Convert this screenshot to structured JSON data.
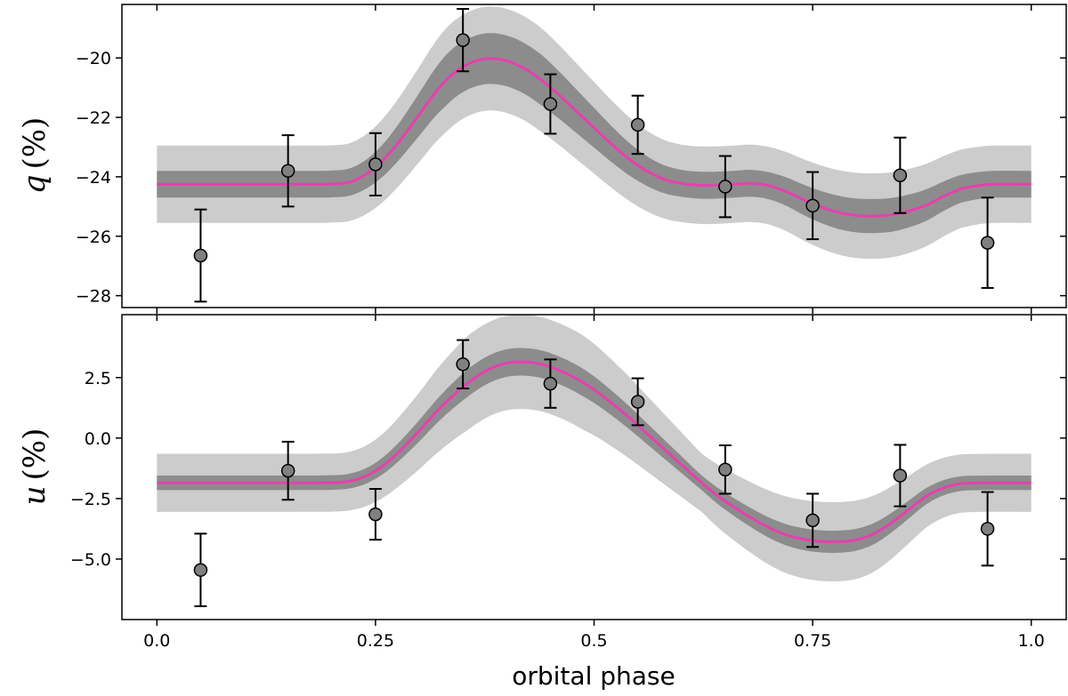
{
  "colors": {
    "band_outer": "#cccccc",
    "band_inner": "#8c8c8c",
    "model_line": "#e83fae",
    "marker_fill": "#808080",
    "marker_edge": "#000000",
    "axis": "#000000"
  },
  "chart_data": [
    {
      "type": "scatter",
      "panel": "top",
      "ylabel_var": "q",
      "ylabel_unit": "(%)",
      "xlabel": "",
      "xlim": [
        -0.04,
        1.04
      ],
      "ylim": [
        -28.4,
        -18.2
      ],
      "yticks": [
        -28,
        -26,
        -24,
        -22,
        -20
      ],
      "ytick_labels": [
        "−28",
        "−26",
        "−24",
        "−22",
        "−20"
      ],
      "xticks": [
        0.0,
        0.25,
        0.5,
        0.75,
        1.0
      ],
      "points": {
        "x": [
          0.05,
          0.15,
          0.25,
          0.35,
          0.45,
          0.55,
          0.65,
          0.75,
          0.85,
          0.95
        ],
        "y": [
          -26.65,
          -23.8,
          -23.58,
          -19.4,
          -21.55,
          -22.25,
          -24.33,
          -24.97,
          -23.95,
          -26.22
        ],
        "yerr": [
          1.55,
          1.2,
          1.05,
          1.05,
          1.0,
          0.98,
          1.03,
          1.13,
          1.27,
          1.52
        ]
      },
      "model": {
        "x": [
          0.0,
          0.05,
          0.1,
          0.15,
          0.18,
          0.2,
          0.22,
          0.24,
          0.26,
          0.28,
          0.3,
          0.32,
          0.34,
          0.36,
          0.38,
          0.4,
          0.42,
          0.44,
          0.46,
          0.48,
          0.5,
          0.52,
          0.54,
          0.56,
          0.58,
          0.6,
          0.62,
          0.64,
          0.66,
          0.68,
          0.7,
          0.72,
          0.74,
          0.76,
          0.78,
          0.8,
          0.82,
          0.84,
          0.86,
          0.88,
          0.9,
          0.92,
          0.95,
          1.0
        ],
        "y": [
          -24.25,
          -24.25,
          -24.25,
          -24.25,
          -24.25,
          -24.24,
          -24.18,
          -23.9,
          -23.4,
          -22.7,
          -21.9,
          -21.1,
          -20.5,
          -20.15,
          -20.02,
          -20.1,
          -20.35,
          -20.75,
          -21.25,
          -21.8,
          -22.35,
          -22.9,
          -23.4,
          -23.8,
          -24.08,
          -24.22,
          -24.28,
          -24.28,
          -24.25,
          -24.22,
          -24.3,
          -24.5,
          -24.78,
          -25.02,
          -25.2,
          -25.3,
          -25.32,
          -25.28,
          -25.15,
          -24.95,
          -24.65,
          -24.4,
          -24.26,
          -24.25
        ]
      },
      "band_inner_halfwidth": 0.45,
      "band_outer_halfwidth": 1.3,
      "band_outer_halfwidth_peak": 1.75
    },
    {
      "type": "scatter",
      "panel": "bottom",
      "ylabel_var": "u",
      "ylabel_unit": "(%)",
      "xlabel": "orbital phase",
      "xlim": [
        -0.04,
        1.04
      ],
      "ylim": [
        -7.5,
        5.1
      ],
      "yticks": [
        -5.0,
        -2.5,
        0.0,
        2.5
      ],
      "ytick_labels": [
        "−5.0",
        "−2.5",
        "0.0",
        "2.5"
      ],
      "xticks": [
        0.0,
        0.25,
        0.5,
        0.75,
        1.0
      ],
      "xtick_labels": [
        "0.0",
        "0.25",
        "0.5",
        "0.75",
        "1.0"
      ],
      "points": {
        "x": [
          0.05,
          0.15,
          0.25,
          0.35,
          0.45,
          0.55,
          0.65,
          0.75,
          0.85,
          0.95
        ],
        "y": [
          -5.45,
          -1.35,
          -3.15,
          3.05,
          2.25,
          1.5,
          -1.3,
          -3.4,
          -1.55,
          -3.75
        ],
        "yerr": [
          1.5,
          1.2,
          1.05,
          1.0,
          1.0,
          0.97,
          1.0,
          1.1,
          1.27,
          1.52
        ]
      },
      "model": {
        "x": [
          0.0,
          0.05,
          0.1,
          0.15,
          0.2,
          0.22,
          0.24,
          0.26,
          0.28,
          0.3,
          0.32,
          0.34,
          0.36,
          0.38,
          0.4,
          0.42,
          0.44,
          0.46,
          0.48,
          0.5,
          0.52,
          0.54,
          0.56,
          0.58,
          0.6,
          0.62,
          0.64,
          0.66,
          0.68,
          0.7,
          0.72,
          0.74,
          0.76,
          0.78,
          0.8,
          0.82,
          0.84,
          0.86,
          0.88,
          0.9,
          0.92,
          0.95,
          1.0
        ],
        "y": [
          -1.85,
          -1.85,
          -1.85,
          -1.85,
          -1.84,
          -1.78,
          -1.55,
          -1.1,
          -0.45,
          0.3,
          1.1,
          1.8,
          2.4,
          2.85,
          3.1,
          3.15,
          3.05,
          2.8,
          2.45,
          2.0,
          1.45,
          0.85,
          0.2,
          -0.45,
          -1.1,
          -1.75,
          -2.35,
          -2.85,
          -3.3,
          -3.7,
          -4.0,
          -4.18,
          -4.27,
          -4.28,
          -4.2,
          -3.95,
          -3.5,
          -2.95,
          -2.4,
          -2.05,
          -1.88,
          -1.85,
          -1.85
        ]
      },
      "band_inner_halfwidth": 0.3,
      "band_outer_halfwidth": 1.2,
      "band_outer_halfwidth_peak": 1.95
    }
  ]
}
